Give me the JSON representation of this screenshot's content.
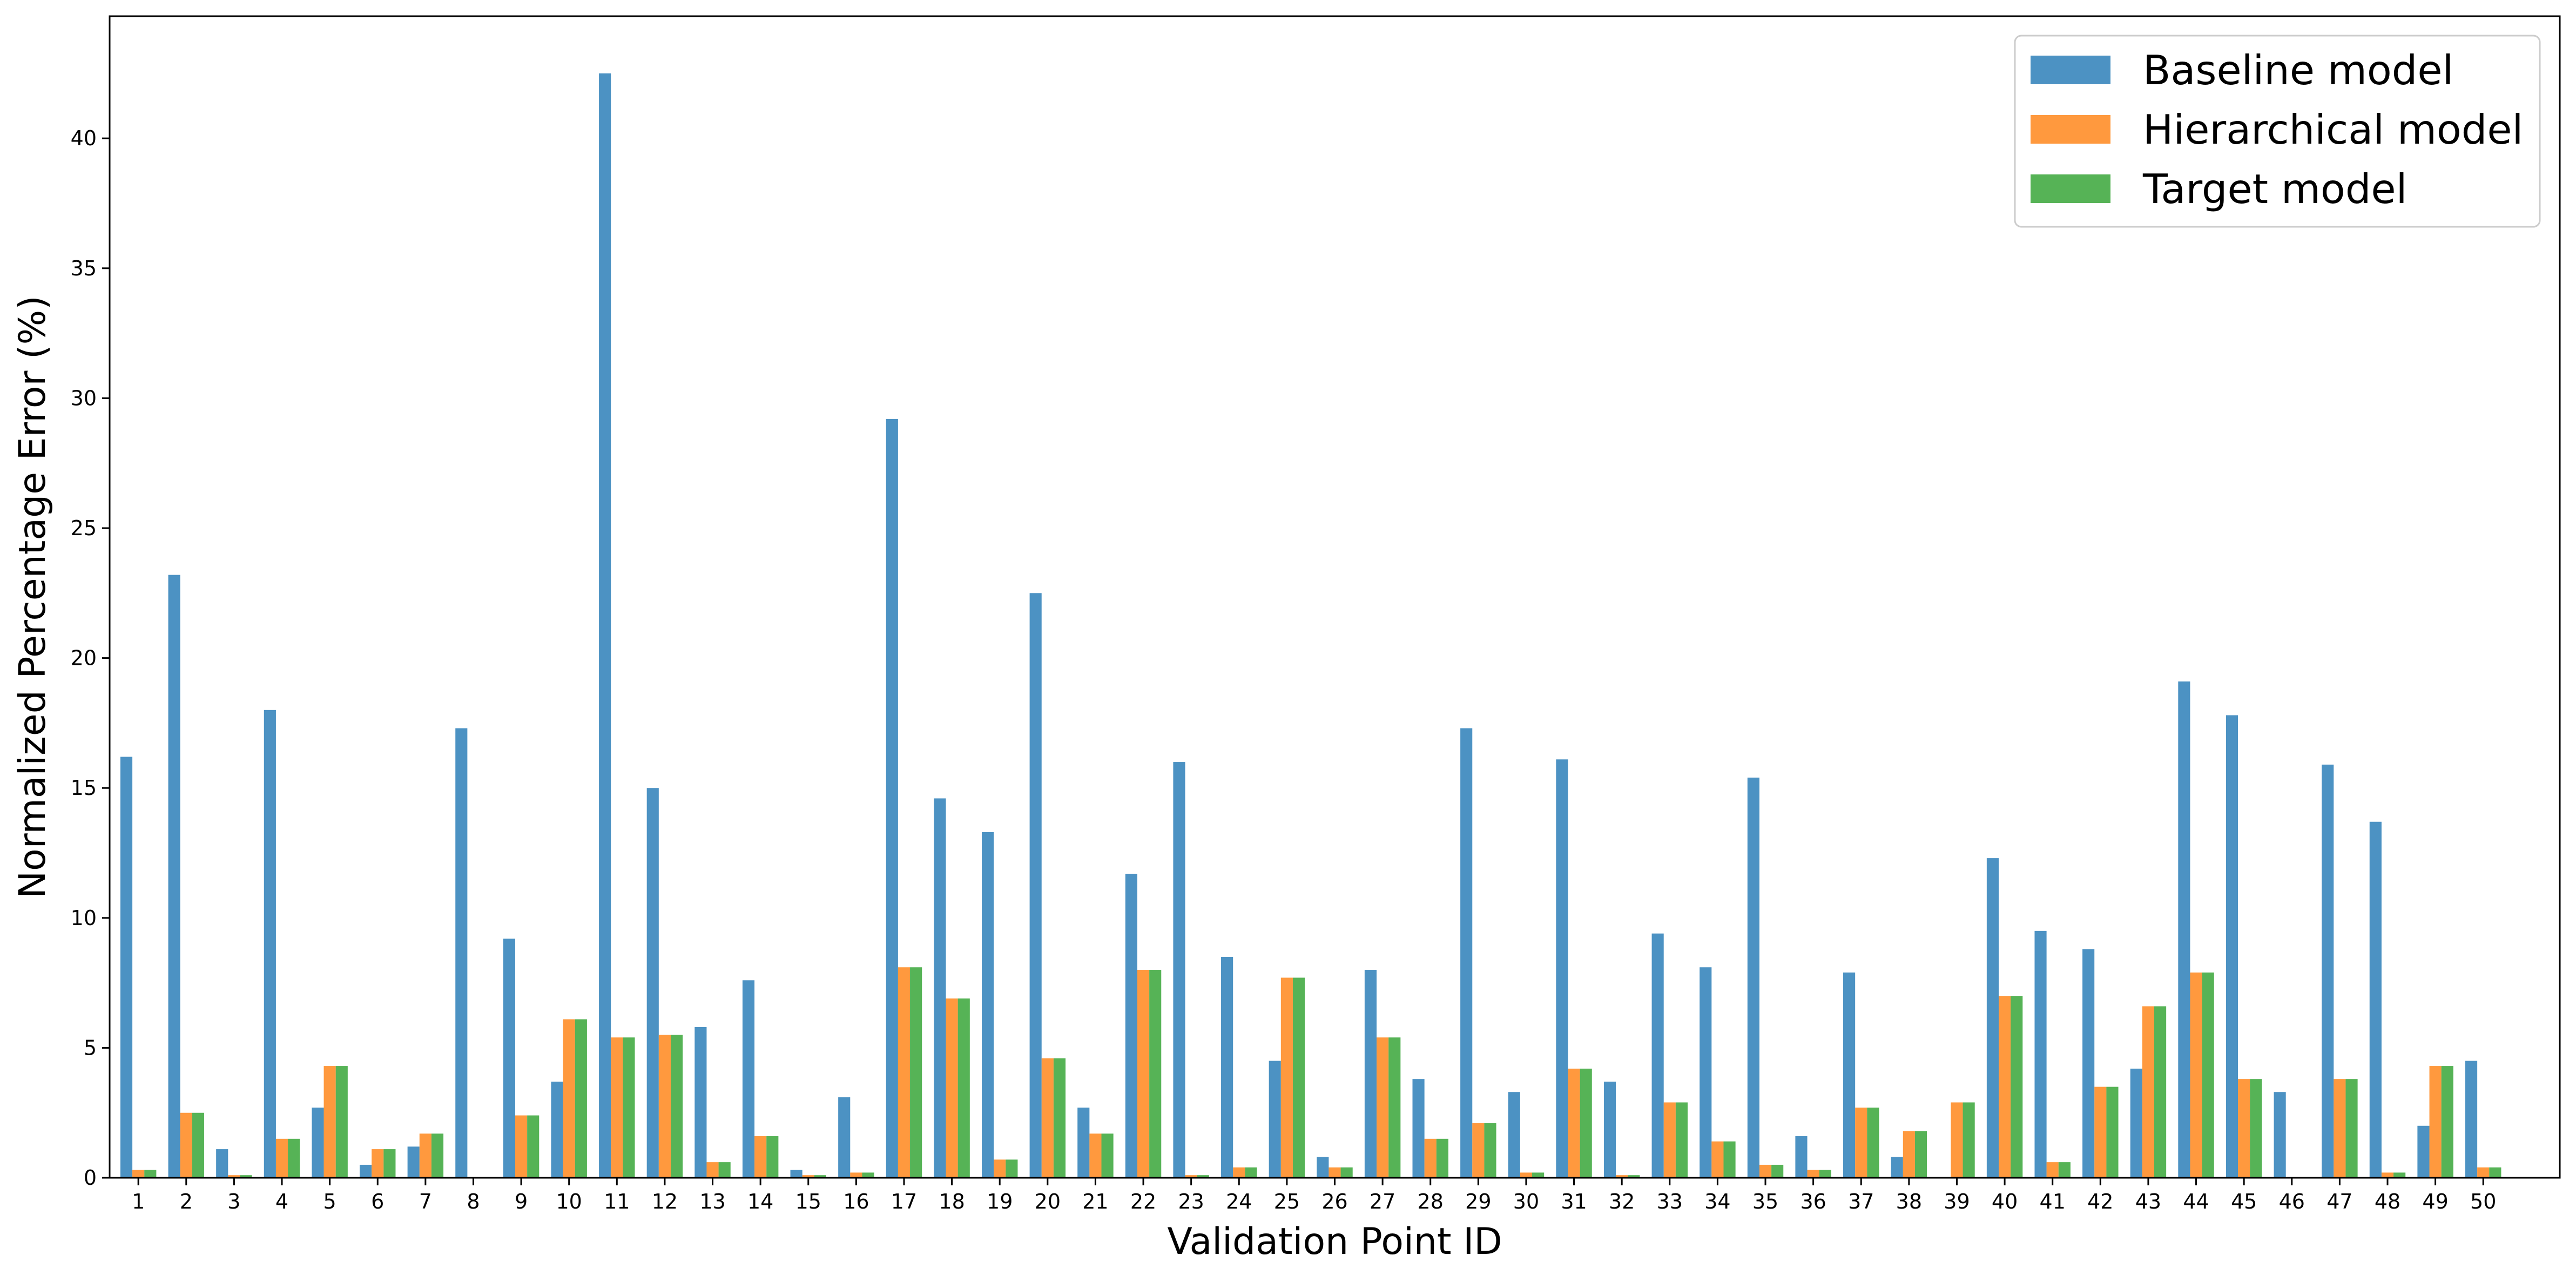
{
  "chart_data": {
    "type": "bar",
    "title": "",
    "xlabel": "Validation Point ID",
    "ylabel": "Normalized Percentage Error (%)",
    "ylim": [
      0,
      44.7
    ],
    "yticks": [
      0,
      5,
      10,
      15,
      20,
      25,
      30,
      35,
      40
    ],
    "grid": false,
    "legend_position": "top-right",
    "categories": [
      "1",
      "2",
      "3",
      "4",
      "5",
      "6",
      "7",
      "8",
      "9",
      "10",
      "11",
      "12",
      "13",
      "14",
      "15",
      "16",
      "17",
      "18",
      "19",
      "20",
      "21",
      "22",
      "23",
      "24",
      "25",
      "26",
      "27",
      "28",
      "29",
      "30",
      "31",
      "32",
      "33",
      "34",
      "35",
      "36",
      "37",
      "38",
      "39",
      "40",
      "41",
      "42",
      "43",
      "44",
      "45",
      "46",
      "47",
      "48",
      "49",
      "50"
    ],
    "series": [
      {
        "name": "Baseline model",
        "color": "#1f77b4",
        "values": [
          16.2,
          23.2,
          1.1,
          18.0,
          2.7,
          0.5,
          1.2,
          17.3,
          9.2,
          3.7,
          42.5,
          15.0,
          5.8,
          7.6,
          0.3,
          3.1,
          29.2,
          14.6,
          13.3,
          22.5,
          2.7,
          11.7,
          16.0,
          8.5,
          4.5,
          0.8,
          8.0,
          3.8,
          17.3,
          3.3,
          16.1,
          3.7,
          9.4,
          8.1,
          15.4,
          1.6,
          7.9,
          0.8,
          0.0,
          12.3,
          9.5,
          8.8,
          4.2,
          19.1,
          17.8,
          3.3,
          15.9,
          13.7,
          2.0,
          4.5
        ]
      },
      {
        "name": "Hierarchical model",
        "color": "#ff7f0e",
        "values": [
          0.3,
          2.5,
          0.1,
          1.5,
          4.3,
          1.1,
          1.7,
          0.0,
          2.4,
          6.1,
          5.4,
          5.5,
          0.6,
          1.6,
          0.1,
          0.2,
          8.1,
          6.9,
          0.7,
          4.6,
          1.7,
          8.0,
          0.1,
          0.4,
          7.7,
          0.4,
          5.4,
          1.5,
          2.1,
          0.2,
          4.2,
          0.1,
          2.9,
          1.4,
          0.5,
          0.3,
          2.7,
          1.8,
          2.9,
          7.0,
          0.6,
          3.5,
          6.6,
          7.9,
          3.8,
          0.0,
          3.8,
          0.2,
          4.3,
          0.4
        ]
      },
      {
        "name": "Target model",
        "color": "#2ca02c",
        "values": [
          0.3,
          2.5,
          0.1,
          1.5,
          4.3,
          1.1,
          1.7,
          0.0,
          2.4,
          6.1,
          5.4,
          5.5,
          0.6,
          1.6,
          0.1,
          0.2,
          8.1,
          6.9,
          0.7,
          4.6,
          1.7,
          8.0,
          0.1,
          0.4,
          7.7,
          0.4,
          5.4,
          1.5,
          2.1,
          0.2,
          4.2,
          0.1,
          2.9,
          1.4,
          0.5,
          0.3,
          2.7,
          1.8,
          2.9,
          7.0,
          0.6,
          3.5,
          6.6,
          7.9,
          3.8,
          0.0,
          3.8,
          0.2,
          4.3,
          0.4
        ]
      }
    ]
  }
}
